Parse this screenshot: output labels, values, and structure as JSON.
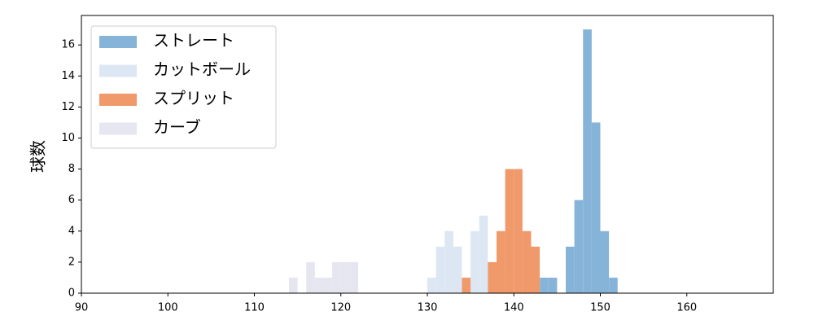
{
  "chart_data": {
    "type": "histogram",
    "y_label": "球数",
    "xlim": [
      90,
      170
    ],
    "xticks": [
      90,
      100,
      110,
      120,
      130,
      140,
      150,
      160
    ],
    "ylim": [
      0,
      17.9
    ],
    "yticks": [
      0,
      2,
      4,
      6,
      8,
      10,
      12,
      14,
      16
    ],
    "legend": "upper left",
    "series": [
      {
        "name": "ストレート",
        "color": "#86b4d9",
        "bins": [
          143,
          144,
          145,
          146,
          147,
          148,
          149,
          150,
          151,
          152
        ],
        "values": [
          1,
          1,
          0,
          3,
          6,
          17,
          11,
          4,
          1
        ]
      },
      {
        "name": "カットボール",
        "color": "#dce7f3",
        "bins": [
          130,
          131,
          132,
          133,
          134,
          135,
          136,
          137,
          138,
          139,
          140
        ],
        "values": [
          1,
          3,
          4,
          3,
          0,
          4,
          5,
          0,
          0,
          1
        ]
      },
      {
        "name": "スプリット",
        "color": "#f0996a",
        "bins": [
          134,
          135,
          136,
          137,
          138,
          139,
          140,
          141,
          142,
          143
        ],
        "values": [
          1,
          0,
          0,
          2,
          4,
          8,
          8,
          4,
          3
        ]
      },
      {
        "name": "カーブ",
        "color": "#e6e6f1",
        "bins": [
          114,
          115,
          116,
          117,
          118,
          119,
          120,
          121,
          122
        ],
        "values": [
          1,
          0,
          2,
          1,
          1,
          2,
          2,
          2
        ]
      }
    ]
  }
}
